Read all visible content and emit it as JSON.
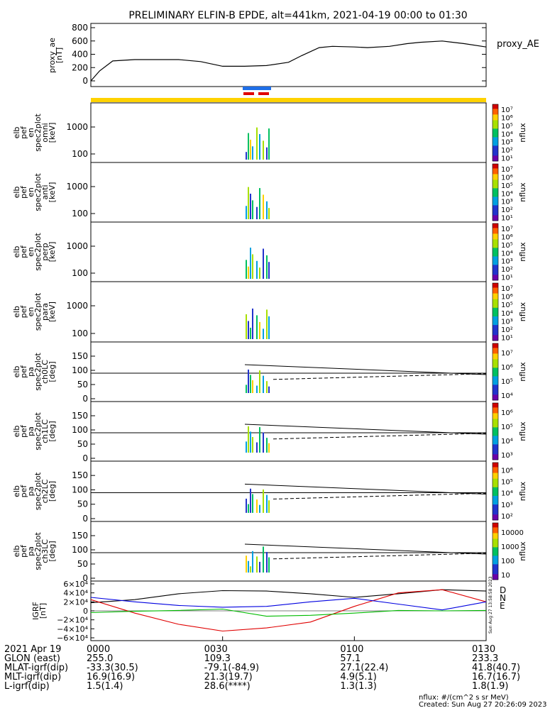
{
  "title": "PRELIMINARY ELFIN-B EPDE, alt=441km, 2021-04-19 00:00 to 01:30",
  "panels": {
    "ae": {
      "ylabel_lines": [
        "proxy_ae",
        "[nT]"
      ],
      "yticks": [
        "0",
        "200",
        "400",
        "600",
        "800"
      ],
      "legend": "proxy_AE"
    },
    "spec_en": [
      {
        "ylabel_lines": [
          "elb",
          "pef",
          "en",
          "spec2plot",
          "omni",
          "[keV]"
        ],
        "yticks": [
          "100",
          "1000"
        ]
      },
      {
        "ylabel_lines": [
          "elb",
          "pef",
          "en",
          "spec2plot",
          "anti",
          "[keV]"
        ],
        "yticks": [
          "100",
          "1000"
        ]
      },
      {
        "ylabel_lines": [
          "elb",
          "pef",
          "en",
          "spec2plot",
          "perp",
          "[keV]"
        ],
        "yticks": [
          "100",
          "1000"
        ]
      },
      {
        "ylabel_lines": [
          "elb",
          "pef",
          "en",
          "spec2plot",
          "para",
          "[keV]"
        ],
        "yticks": [
          "100",
          "1000"
        ]
      }
    ],
    "spec_pa": [
      {
        "ylabel_lines": [
          "elb",
          "pef",
          "pa",
          "spec2plot",
          "ch0LC",
          "[deg]"
        ],
        "yticks": [
          "0",
          "50",
          "100",
          "150"
        ]
      },
      {
        "ylabel_lines": [
          "elb",
          "pef",
          "pa",
          "spec2plot",
          "ch1LC",
          "[deg]"
        ],
        "yticks": [
          "0",
          "50",
          "100",
          "150"
        ]
      },
      {
        "ylabel_lines": [
          "elb",
          "pef",
          "pa",
          "spec2plot",
          "ch2LC",
          "[deg]"
        ],
        "yticks": [
          "0",
          "50",
          "100",
          "150"
        ]
      },
      {
        "ylabel_lines": [
          "elb",
          "pef",
          "pa",
          "spec2plot",
          "ch3LC",
          "[deg]"
        ],
        "yticks": [
          "0",
          "50",
          "100",
          "150"
        ]
      }
    ],
    "colorbars": [
      {
        "label": "nflux",
        "ticks": [
          "10¹",
          "10²",
          "10³",
          "10⁴",
          "10⁵",
          "10⁶",
          "10⁷"
        ]
      },
      {
        "label": "nflux",
        "ticks": [
          "10¹",
          "10²",
          "10³",
          "10⁴",
          "10⁵",
          "10⁶",
          "10⁷"
        ]
      },
      {
        "label": "nflux",
        "ticks": [
          "10¹",
          "10²",
          "10³",
          "10⁴",
          "10⁵",
          "10⁶",
          "10⁷"
        ]
      },
      {
        "label": "nflux",
        "ticks": [
          "10¹",
          "10²",
          "10³",
          "10⁴",
          "10⁵",
          "10⁶",
          "10⁷"
        ]
      },
      {
        "label": "nflux",
        "ticks": [
          "10⁴",
          "10⁵",
          "10⁶",
          "10⁷"
        ]
      },
      {
        "label": "nflux",
        "ticks": [
          "10³",
          "10⁴",
          "10⁵",
          "10⁶"
        ]
      },
      {
        "label": "nflux",
        "ticks": [
          "10²",
          "10³",
          "10⁴",
          "10⁵",
          "10⁶"
        ]
      },
      {
        "label": "nflux",
        "ticks": [
          "10",
          "100",
          "1000",
          "10000"
        ]
      }
    ],
    "igrf": {
      "ylabel_lines": [
        "IGRF",
        "[nT]"
      ],
      "yticks": [
        "−6×10⁴",
        "−4×10⁴",
        "−2×10⁴",
        "0",
        "2×10⁴",
        "4×10⁴",
        "6×10⁴"
      ],
      "components": [
        "D",
        "N",
        "E"
      ],
      "component_colors": {
        "D": "#e00000",
        "N": "#0000e0",
        "E": "#00bb00"
      },
      "side_note": "Sun Aug 27 13:58:58 2023"
    }
  },
  "footer": {
    "rows": [
      {
        "label": "2021 Apr 19",
        "values": [
          "0000",
          "0030",
          "0100",
          "0130"
        ]
      },
      {
        "label": "GLON (east)",
        "values": [
          "255.0",
          "109.3",
          "57.1",
          "233.3"
        ]
      },
      {
        "label": "MLAT-igrf(dip)",
        "values": [
          "-33.3(30.5)",
          "-79.1(-84.9)",
          "27.1(22.4)",
          "41.8(40.7)"
        ]
      },
      {
        "label": "MLT-igrf(dip)",
        "values": [
          "16.9(16.9)",
          "21.3(19.7)",
          "4.9(5.1)",
          "16.7(16.7)"
        ]
      },
      {
        "label": "L-igrf(dip)",
        "values": [
          "1.5(1.4)",
          "28.6(****)",
          "1.3(1.3)",
          "1.8(1.9)"
        ]
      }
    ],
    "units": "nflux: #/(cm^2 s sr MeV)",
    "created": "Created: Sun Aug 27 20:26:09 2023"
  },
  "chart_data": {
    "type": "line",
    "x_range": [
      "00:00",
      "01:30"
    ],
    "proxy_ae": {
      "ylim": [
        0,
        800
      ],
      "t_min": [
        0,
        2,
        5,
        10,
        20,
        25,
        30,
        35,
        40,
        45,
        48,
        52,
        55,
        60,
        63,
        68,
        72,
        75,
        80,
        85,
        90
      ],
      "values": [
        0,
        150,
        300,
        320,
        320,
        290,
        220,
        220,
        230,
        280,
        380,
        500,
        520,
        510,
        500,
        520,
        560,
        580,
        600,
        560,
        510
      ]
    },
    "igrf": {
      "ylim": [
        -60000,
        60000
      ],
      "t_min": [
        0,
        10,
        20,
        30,
        40,
        50,
        60,
        70,
        80,
        90
      ],
      "D": [
        25000,
        -5000,
        -30000,
        -45000,
        -38000,
        -25000,
        10000,
        40000,
        47000,
        20000
      ],
      "N": [
        30000,
        20000,
        12000,
        8000,
        10000,
        20000,
        28000,
        15000,
        2000,
        20000
      ],
      "E": [
        -4000,
        -1000,
        1000,
        4000,
        -12000,
        -10000,
        -5000,
        1000,
        0,
        1000
      ],
      "F": [
        18000,
        25000,
        38000,
        45000,
        44000,
        38000,
        30000,
        38000,
        47000,
        44000
      ]
    }
  }
}
